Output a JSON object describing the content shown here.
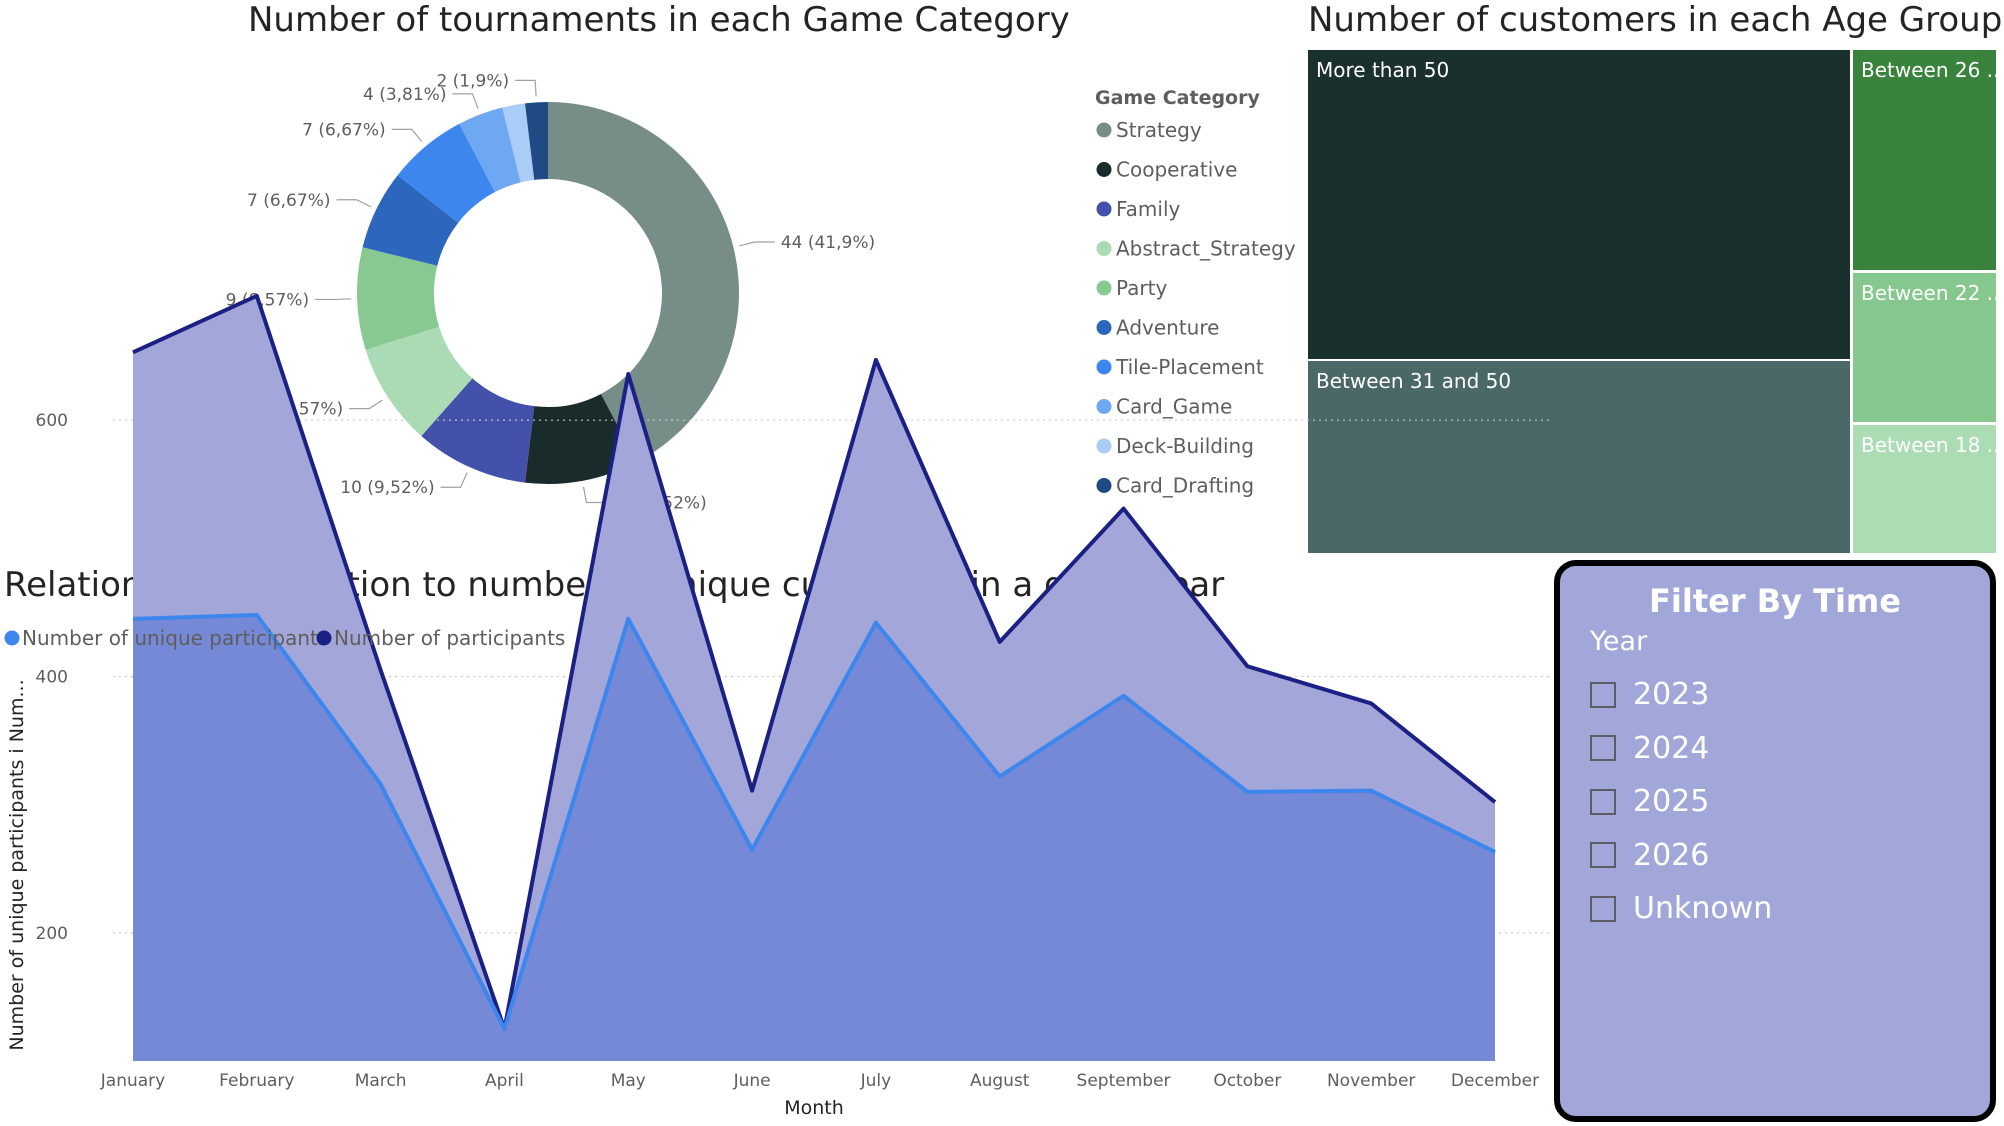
{
  "charts": {
    "donut": {
      "title": "Number of tournaments in each Game Category",
      "legend_title": "Game Category"
    },
    "treemap": {
      "title": "Number of customers in each Age Group"
    },
    "area": {
      "title": "Relation of participation to number of unique customers in a given year",
      "xlabel": "Month",
      "ylabel": "Number of unique participants i Num..."
    }
  },
  "chart_data": [
    {
      "type": "pie",
      "title": "Number of tournaments in each Game Category",
      "legend_title": "Game Category",
      "legend_placement": "right",
      "categories": [
        "Strategy",
        "Cooperative",
        "Family",
        "Abstract_Strategy",
        "Party",
        "Adventure",
        "Tile-Placement",
        "Card_Game",
        "Deck-Building",
        "Card_Drafting"
      ],
      "values": [
        44,
        10,
        10,
        9,
        9,
        7,
        7,
        4,
        2,
        2
      ],
      "labels": [
        "44 (41,9%)",
        "10 (9,52%)",
        "10 (9,52%)",
        "9 (8,57%)",
        "9 (8,57%)",
        "7 (6,67%)",
        "7 (6,67%)",
        "4 (3,81%)",
        "",
        "2 (1,9%)"
      ],
      "colors": [
        "#768d88",
        "#192c2b",
        "#4451ab",
        "#abdbb4",
        "#88c992",
        "#2d67bd",
        "#3d86ee",
        "#6ea7f2",
        "#a9cdf7",
        "#1f4a84"
      ]
    },
    {
      "type": "treemap",
      "title": "Number of customers in each Age Group",
      "categories": [
        "More than 50",
        "Between 31 and 50",
        "Between 26 ...",
        "Between 22 ...",
        "Between 18 ..."
      ],
      "colors": [
        "#19302d",
        "#4a6867",
        "#3a833c",
        "#86c78e",
        "#acdcb4"
      ]
    },
    {
      "type": "area",
      "title": "Relation of participation to number of unique customers in a given year",
      "xlabel": "Month",
      "ylabel": "Number of unique participants i Num...",
      "categories": [
        "January",
        "February",
        "March",
        "April",
        "May",
        "June",
        "July",
        "August",
        "September",
        "October",
        "November",
        "December"
      ],
      "ylim": [
        100,
        730
      ],
      "yticks": [
        200,
        400,
        600
      ],
      "grid": true,
      "legend_placement": "top-left",
      "series": [
        {
          "name": "Number of unique participants",
          "color": "#3d86ee",
          "values": [
            445,
            448,
            316,
            125,
            445,
            265,
            442,
            322,
            385,
            310,
            311,
            263
          ]
        },
        {
          "name": "Number of participants",
          "color": "#1a2084",
          "values": [
            653,
            697,
            405,
            125,
            636,
            311,
            647,
            427,
            531,
            408,
            379,
            302
          ]
        }
      ]
    }
  ],
  "slicer": {
    "title": "Filter By Time",
    "header": "Year",
    "items": [
      "2023",
      "2024",
      "2025",
      "2026",
      "Unknown"
    ]
  }
}
